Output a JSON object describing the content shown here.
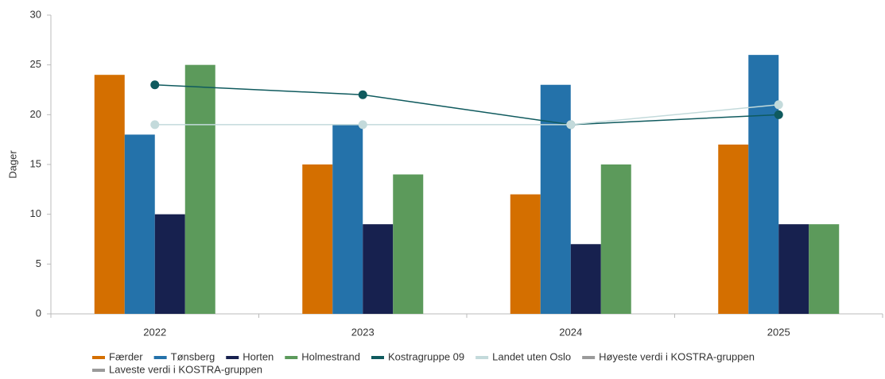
{
  "chart_data": {
    "type": "bar",
    "y_label": "Dager",
    "categories": [
      "2022",
      "2023",
      "2024",
      "2025"
    ],
    "ylim": [
      0,
      30
    ],
    "yticks": [
      0,
      5,
      10,
      15,
      20,
      25,
      30
    ],
    "series": [
      {
        "name": "Færder",
        "color": "#d46f00",
        "type": "bar",
        "values": [
          24,
          15,
          12,
          17
        ]
      },
      {
        "name": "Tønsberg",
        "color": "#2472aa",
        "type": "bar",
        "values": [
          18,
          19,
          23,
          26
        ]
      },
      {
        "name": "Horten",
        "color": "#17214f",
        "type": "bar",
        "values": [
          10,
          9,
          7,
          9
        ]
      },
      {
        "name": "Holmestrand",
        "color": "#5c9a5b",
        "type": "bar",
        "values": [
          25,
          14,
          15,
          9
        ]
      },
      {
        "name": "Kostragruppe 09",
        "color": "#0f5a5e",
        "type": "line",
        "values": [
          23,
          22,
          19,
          20
        ]
      },
      {
        "name": "Landet uten Oslo",
        "color": "#c3dadb",
        "type": "line",
        "values": [
          19,
          19,
          19,
          21
        ]
      },
      {
        "name": "Høyeste verdi i KOSTRA-gruppen",
        "color": "#9a9a9a",
        "type": "line",
        "values": [
          null,
          null,
          null,
          null
        ]
      },
      {
        "name": "Laveste verdi i KOSTRA-gruppen",
        "color": "#9a9a9a",
        "type": "line",
        "values": [
          null,
          null,
          null,
          null
        ]
      }
    ]
  }
}
